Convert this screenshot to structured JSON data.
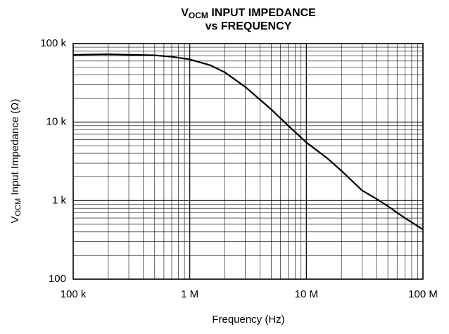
{
  "chart_data": {
    "type": "line",
    "title": [
      "V",
      "OCM",
      " INPUT IMPEDANCE",
      "vs FREQUENCY"
    ],
    "xlabel": "Frequency (Hz)",
    "ylabel": [
      "V",
      "OCM",
      " Input Impedance (Ω)"
    ],
    "xscale": "log",
    "yscale": "log",
    "grid": true,
    "xlim": [
      100000,
      100000000
    ],
    "ylim": [
      100,
      100000
    ],
    "xticks": [
      {
        "value": 100000,
        "label": "100 k"
      },
      {
        "value": 1000000,
        "label": "1 M"
      },
      {
        "value": 10000000,
        "label": "10 M"
      },
      {
        "value": 100000000,
        "label": "100 M"
      }
    ],
    "yticks": [
      100,
      {
        "value": 1000,
        "label": "1 k"
      },
      {
        "value": 10000,
        "label": "10 k"
      },
      {
        "value": 100000,
        "label": "100 k"
      }
    ],
    "xminor": [
      200000,
      300000,
      400000,
      500000,
      600000,
      700000,
      800000,
      900000,
      2000000,
      3000000,
      4000000,
      5000000,
      6000000,
      7000000,
      8000000,
      9000000,
      20000000,
      30000000,
      40000000,
      50000000,
      60000000,
      70000000,
      80000000,
      90000000
    ],
    "yminor": [
      200,
      300,
      400,
      500,
      600,
      700,
      800,
      900,
      2000,
      3000,
      4000,
      5000,
      6000,
      7000,
      8000,
      9000,
      20000,
      30000,
      40000,
      50000,
      60000,
      70000,
      80000,
      90000
    ],
    "series": [
      {
        "color": "#000000",
        "x": [
          100000,
          200000,
          500000,
          700000,
          1000000,
          1500000,
          2000000,
          3000000,
          5000000,
          7000000,
          10000000,
          15000000,
          20000000,
          30000000,
          40000000,
          50000000,
          70000000,
          100000000
        ],
        "values": [
          72000,
          73000,
          71000,
          68000,
          63000,
          53000,
          43000,
          28000,
          14500,
          9000,
          5500,
          3500,
          2400,
          1350,
          1050,
          850,
          600,
          430
        ]
      }
    ]
  }
}
